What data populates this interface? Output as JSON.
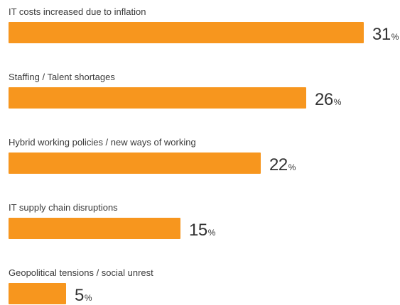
{
  "chart_data": {
    "type": "bar",
    "orientation": "horizontal",
    "categories": [
      "IT costs increased due to inflation",
      "Staffing / Talent shortages",
      "Hybrid working policies / new ways of working",
      "IT supply chain disruptions",
      "Geopolitical tensions / social unrest"
    ],
    "values": [
      31,
      26,
      22,
      15,
      5
    ],
    "value_suffix": "%",
    "title": "",
    "xlabel": "",
    "ylabel": "",
    "xlim": [
      0,
      31
    ],
    "grid": false,
    "legend": "none",
    "colors": {
      "bar": "#F7961E",
      "label": "#3A3A3A",
      "value": "#333333"
    }
  }
}
